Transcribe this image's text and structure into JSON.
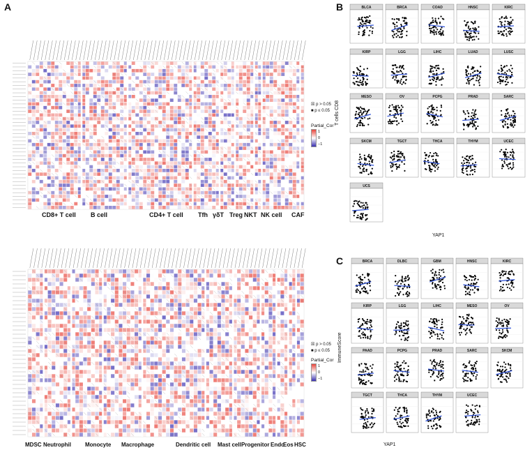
{
  "panel_labels": {
    "a": "A",
    "b": "B",
    "c": "C"
  },
  "heatmap_top": {
    "groups": [
      "CD8+ T cell",
      "B cell",
      "CD4+ T cell",
      "Tfh",
      "γδT",
      "Treg",
      "NKT",
      "NK cell",
      "CAF"
    ],
    "legend": {
      "p_gt": "p > 0.05",
      "p_le": "p ≤ 0.05",
      "title": "Partial_Cor",
      "ticks": [
        "1",
        "0",
        "−1"
      ]
    }
  },
  "heatmap_bottom": {
    "groups": [
      "MDSC",
      "Neutrophil",
      "Monocyte",
      "Macrophage",
      "Dendritic cell",
      "Mast cell",
      "Progenitor",
      "Endo",
      "Eos",
      "HSC"
    ],
    "legend": {
      "p_gt": "p > 0.05",
      "p_le": "p ≤ 0.05",
      "title": "Partial_Cor",
      "ticks": [
        "1",
        "0",
        "−1"
      ]
    }
  },
  "panel_b": {
    "ylabel": "T cells CD8",
    "xlabel": "YAP1",
    "facets": [
      "BLCA",
      "BRCA",
      "COAD",
      "HNSC",
      "KIRC",
      "KIRP",
      "LGG",
      "LIHC",
      "LUAD",
      "LUSC",
      "MESO",
      "OV",
      "PCPG",
      "PRAD",
      "SARC",
      "SKCM",
      "TGCT",
      "THCA",
      "THYM",
      "UCEC",
      "UCS"
    ]
  },
  "panel_c": {
    "ylabel": "ImmuneScore",
    "xlabel": "YAP1",
    "facets": [
      "BRCA",
      "DLBC",
      "GBM",
      "HNSC",
      "KIRC",
      "KIRP",
      "LGG",
      "LIHC",
      "MESO",
      "OV",
      "PAAD",
      "PCPG",
      "PRAD",
      "SARC",
      "SKCM",
      "TGCT",
      "THCA",
      "THYM",
      "UCEC"
    ]
  },
  "colors": {
    "pos": "#e8463c",
    "neg": "#3a2fb0",
    "point": "#000000",
    "line": "#2b4fd6",
    "strip": "#d9d9d9"
  }
}
